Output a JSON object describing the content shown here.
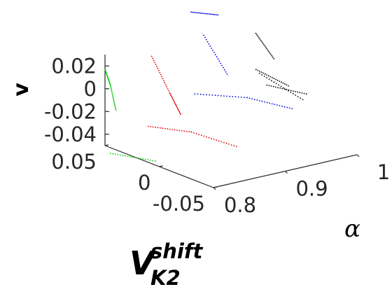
{
  "chart_data": {
    "type": "scatter",
    "projection": "3d",
    "xlabel": "α",
    "ylabel": {
      "main": "V",
      "sup": "shift",
      "sub": "K2"
    },
    "zlabel": "v",
    "xlim": [
      0.8,
      1.0
    ],
    "ylim": [
      -0.05,
      0.05
    ],
    "zlim": [
      -0.05,
      0.03
    ],
    "xticks": [
      {
        "value": 0.8,
        "label": "0.8"
      },
      {
        "value": 0.9,
        "label": "0.9"
      },
      {
        "value": 1.0,
        "label": "1"
      }
    ],
    "yticks": [
      {
        "value": -0.05,
        "label": "-0.05"
      },
      {
        "value": 0,
        "label": "0"
      },
      {
        "value": 0.05,
        "label": "0.05"
      }
    ],
    "zticks": [
      {
        "value": -0.04,
        "label": "-0.04"
      },
      {
        "value": -0.02,
        "label": "-0.02"
      },
      {
        "value": 0,
        "label": "0"
      },
      {
        "value": 0.02,
        "label": "0.02"
      }
    ],
    "grid": false,
    "series": [
      {
        "color": "#00c800",
        "segments": [
          {
            "from": [
              0.8,
              0.045,
              -0.055
            ],
            "to": [
              0.84,
              0.03,
              -0.062
            ]
          },
          {
            "from": [
              0.8,
              0.05,
              0.017
            ],
            "to": [
              0.8,
              0.045,
              0.005
            ]
          },
          {
            "from": [
              0.8,
              0.045,
              0.005
            ],
            "to": [
              0.8,
              0.04,
              -0.015
            ]
          }
        ]
      },
      {
        "color": "#e00000",
        "segments": [
          {
            "from": [
              0.83,
              0.03,
              -0.03
            ],
            "to": [
              0.86,
              0.01,
              -0.032
            ]
          },
          {
            "from": [
              0.86,
              0.01,
              -0.032
            ],
            "to": [
              0.9,
              -0.005,
              -0.045
            ]
          },
          {
            "from": [
              0.85,
              0.04,
              0.025
            ],
            "to": [
              0.86,
              0.03,
              -0.005
            ]
          },
          {
            "from": [
              0.86,
              0.03,
              -0.005
            ],
            "to": [
              0.86,
              0.02,
              -0.02
            ]
          }
        ]
      },
      {
        "color": "#0000e0",
        "segments": [
          {
            "from": [
              0.88,
              0.02,
              -0.005
            ],
            "to": [
              0.93,
              0.005,
              -0.01
            ]
          },
          {
            "from": [
              0.93,
              0.005,
              -0.01
            ],
            "to": [
              0.97,
              -0.01,
              -0.02
            ]
          },
          {
            "from": [
              0.92,
              0.05,
              0.05
            ],
            "to": [
              0.95,
              0.045,
              0.045
            ]
          },
          {
            "from": [
              0.93,
              0.045,
              0.03
            ],
            "to": [
              0.94,
              0.03,
              0.0
            ]
          }
        ]
      },
      {
        "color": "#000000",
        "segments": [
          {
            "from": [
              0.96,
              0.045,
              0.06
            ],
            "to": [
              1.0,
              0.04,
              0.055
            ]
          },
          {
            "from": [
              0.98,
              0.03,
              0.03
            ],
            "to": [
              0.99,
              0.02,
              0.01
            ]
          },
          {
            "from": [
              0.97,
              0.02,
              0.0
            ],
            "to": [
              1.0,
              0.0,
              -0.02
            ]
          },
          {
            "from": [
              0.95,
              0.01,
              0.01
            ],
            "to": [
              0.98,
              0.0,
              -0.005
            ]
          },
          {
            "from": [
              0.95,
              0.0,
              0.0
            ],
            "to": [
              0.99,
              -0.01,
              -0.01
            ]
          }
        ]
      }
    ]
  }
}
